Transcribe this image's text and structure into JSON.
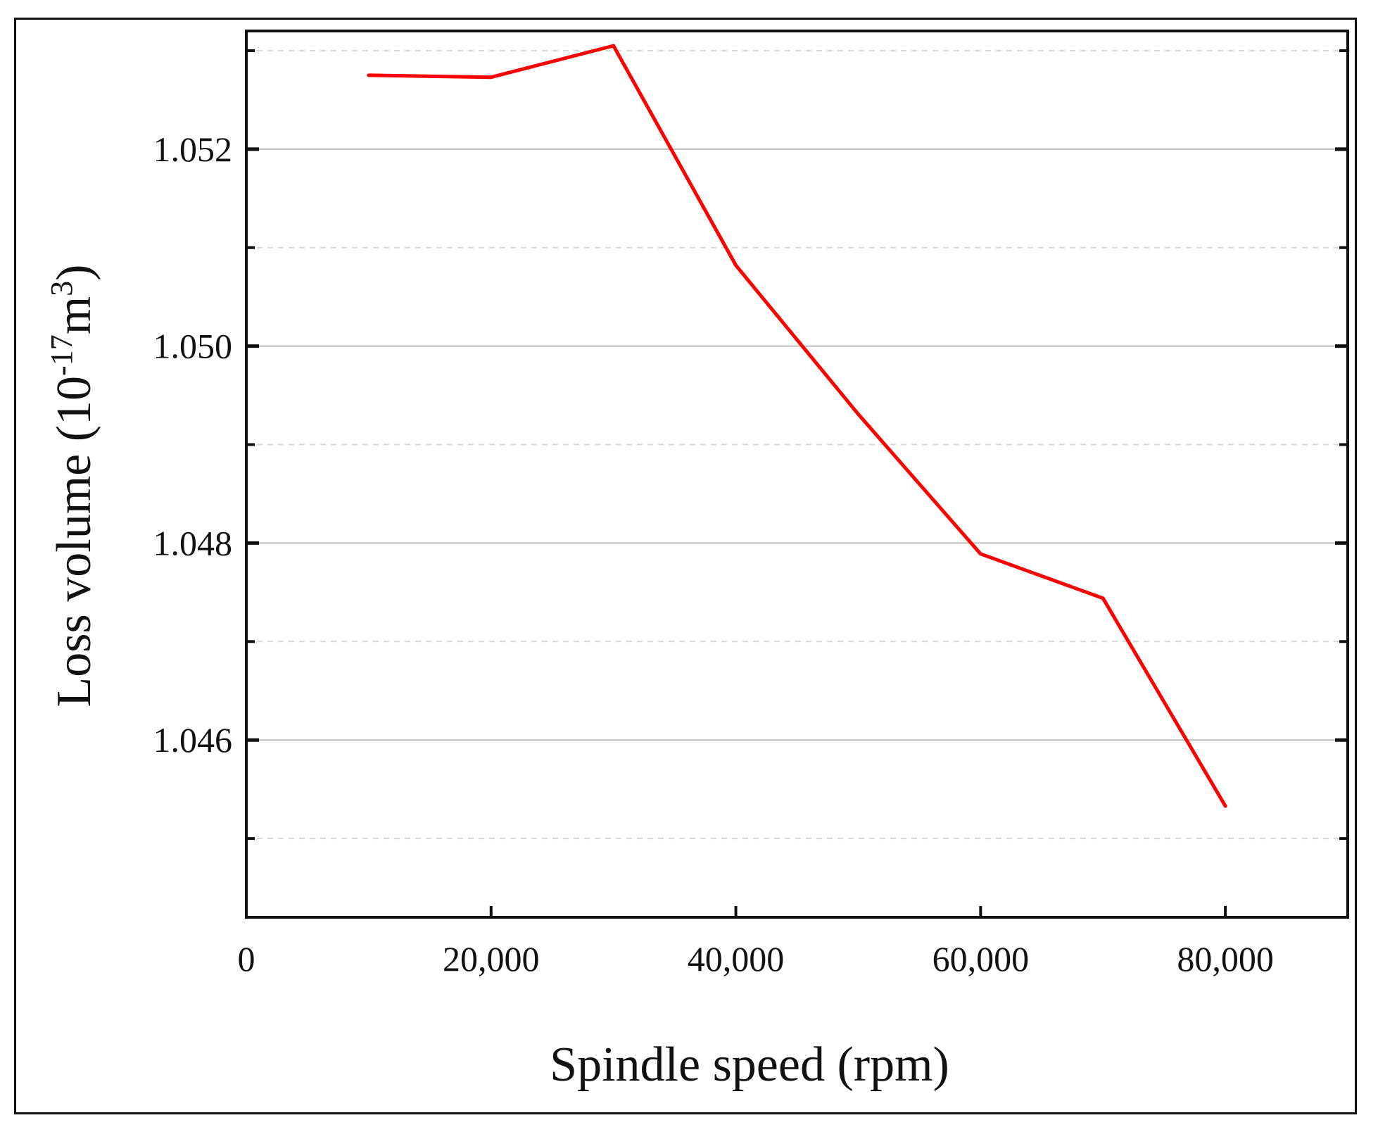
{
  "chart_data": {
    "type": "line",
    "title": "",
    "xlabel": "Spindle speed (rpm)",
    "ylabel_parts": {
      "prefix": "Loss volume (10",
      "exponent": "-17",
      "unit": "m",
      "unit_exponent": "3",
      "suffix": ")"
    },
    "xlim": [
      0,
      90000
    ],
    "ylim": [
      1.0442,
      1.0532
    ],
    "x_ticks": [
      0,
      20000,
      40000,
      60000,
      80000
    ],
    "x_tick_labels": [
      "0",
      "20,000",
      "40,000",
      "60,000",
      "80,000"
    ],
    "y_ticks": [
      1.046,
      1.048,
      1.05,
      1.052
    ],
    "y_tick_labels": [
      "1.046",
      "1.048",
      "1.050",
      "1.052"
    ],
    "y_minor_ticks": [
      1.045,
      1.047,
      1.049,
      1.051,
      1.053
    ],
    "grid": true,
    "series": [
      {
        "name": "Loss volume",
        "color": "#ff0000",
        "x": [
          10000,
          20000,
          30000,
          40000,
          50000,
          60000,
          70000,
          80000
        ],
        "values": [
          1.05275,
          1.05273,
          1.05305,
          1.05082,
          1.04931,
          1.04789,
          1.04744,
          1.04533
        ]
      }
    ]
  }
}
